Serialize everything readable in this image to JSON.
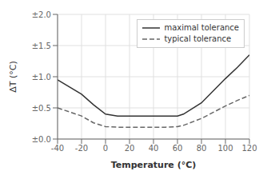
{
  "chart_data": {
    "type": "line",
    "xlabel": "Temperature (°C)",
    "ylabel": "ΔT (°C)",
    "x": [
      -40,
      -20,
      -10,
      0,
      10,
      20,
      30,
      40,
      50,
      60,
      65,
      80,
      100,
      110,
      120
    ],
    "series": [
      {
        "name": "maximal tolerance",
        "color": "#333333",
        "line_style": "solid",
        "values": [
          0.95,
          0.72,
          0.55,
          0.4,
          0.37,
          0.37,
          0.37,
          0.37,
          0.37,
          0.37,
          0.4,
          0.58,
          0.97,
          1.15,
          1.35
        ]
      },
      {
        "name": "typical tolerance",
        "color": "#666666",
        "line_style": "dashed",
        "values": [
          0.5,
          0.37,
          0.26,
          0.2,
          0.19,
          0.19,
          0.19,
          0.19,
          0.19,
          0.2,
          0.22,
          0.33,
          0.53,
          0.62,
          0.7
        ]
      }
    ],
    "xlim": [
      -40,
      120
    ],
    "ylim": [
      0.0,
      2.0
    ],
    "xticks": [
      -40,
      -20,
      0,
      20,
      40,
      60,
      80,
      100,
      120
    ],
    "yticks": [
      {
        "value": 0.0,
        "label": "±0.0"
      },
      {
        "value": 0.5,
        "label": "±0.5"
      },
      {
        "value": 1.0,
        "label": "±1.0"
      },
      {
        "value": 1.5,
        "label": "±1.5"
      },
      {
        "value": 2.0,
        "label": "±2.0"
      }
    ],
    "grid": true,
    "legend": "upper right"
  }
}
